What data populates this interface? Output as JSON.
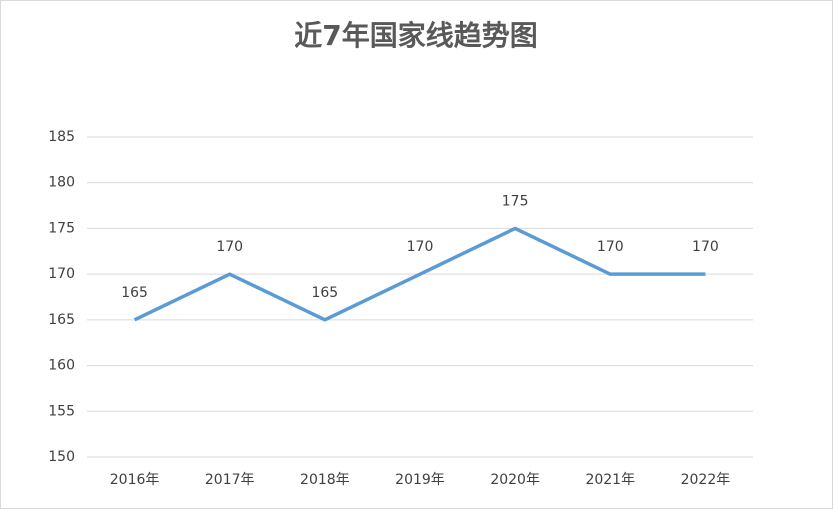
{
  "chart_data": {
    "type": "line",
    "title": "近7年国家线趋势图",
    "categories": [
      "2016年",
      "2017年",
      "2018年",
      "2019年",
      "2020年",
      "2021年",
      "2022年"
    ],
    "series": [
      {
        "color": "#5b9bd5",
        "values": [
          165,
          170,
          165,
          170,
          175,
          170,
          170
        ]
      }
    ],
    "ylim": [
      150,
      185
    ],
    "yticks": [
      150,
      155,
      160,
      165,
      170,
      175,
      180,
      185
    ],
    "grid": true,
    "data_labels": true
  }
}
